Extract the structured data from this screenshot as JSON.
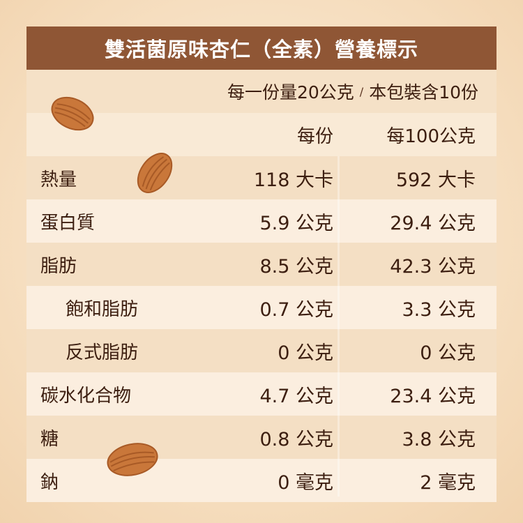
{
  "title": "雙活菌原味杏仁（全素）營養標示",
  "serving": {
    "per_serving": "每一份量20公克",
    "separator": "/",
    "package": "本包裝含10份"
  },
  "columns": {
    "per_serving": "每份",
    "per_100g": "每100公克"
  },
  "rows": [
    {
      "name": "熱量",
      "indent": false,
      "per_serving": "118 大卡",
      "per_100g": "592 大卡"
    },
    {
      "name": "蛋白質",
      "indent": false,
      "per_serving": "5.9 公克",
      "per_100g": "29.4 公克"
    },
    {
      "name": "脂肪",
      "indent": false,
      "per_serving": "8.5 公克",
      "per_100g": "42.3 公克"
    },
    {
      "name": "飽和脂肪",
      "indent": true,
      "per_serving": "0.7 公克",
      "per_100g": "3.3 公克"
    },
    {
      "name": "反式脂肪",
      "indent": true,
      "per_serving": "0 公克",
      "per_100g": "0 公克"
    },
    {
      "name": "碳水化合物",
      "indent": false,
      "per_serving": "4.7 公克",
      "per_100g": "23.4 公克"
    },
    {
      "name": "糖",
      "indent": false,
      "per_serving": "0.8 公克",
      "per_100g": "3.8 公克"
    },
    {
      "name": "鈉",
      "indent": false,
      "per_serving": "0 毫克",
      "per_100g": "2 毫克"
    }
  ],
  "colors": {
    "header_bg": "#8f5635",
    "text": "#3c1e10",
    "almond": "#c9773a"
  }
}
